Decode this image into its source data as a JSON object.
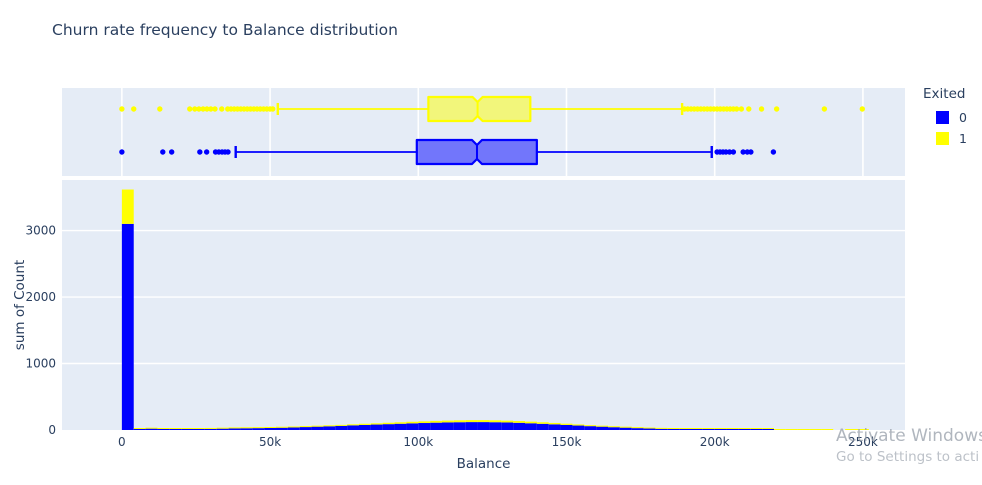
{
  "title": "Churn rate frequency to Balance distribution",
  "watermark": {
    "line1": "Activate Windows",
    "line2": "Go to Settings to acti"
  },
  "theme": {
    "paper_bg": "#ffffff",
    "plot_bg": "#e5ecf6",
    "grid_color": "#ffffff",
    "font_color": "#2a3f5f",
    "color_exited_0": "#0000ff",
    "color_exited_1": "#ffff00"
  },
  "chart_data": {
    "type": "histogram+marginal-box",
    "title": "Churn rate frequency to Balance distribution",
    "xlabel": "Balance",
    "ylabel": "sum of Count",
    "legend": {
      "title": "Exited",
      "items": [
        {
          "label": "0",
          "color": "#0000ff"
        },
        {
          "label": "1",
          "color": "#ffff00"
        }
      ]
    },
    "x_axis": {
      "unit": "thousands",
      "range_k": [
        -20.2,
        264.2
      ],
      "ticks": [
        {
          "value_k": 0,
          "label": "0"
        },
        {
          "value_k": 50,
          "label": "50k"
        },
        {
          "value_k": 100,
          "label": "100k"
        },
        {
          "value_k": 150,
          "label": "150k"
        },
        {
          "value_k": 200,
          "label": "200k"
        },
        {
          "value_k": 250,
          "label": "250k"
        }
      ]
    },
    "y_axis": {
      "range": [
        0,
        3760
      ],
      "ticks": [
        {
          "value": 0,
          "label": "0"
        },
        {
          "value": 1000,
          "label": "1000"
        },
        {
          "value": 2000,
          "label": "2000"
        },
        {
          "value": 3000,
          "label": "3000"
        }
      ]
    },
    "histogram": {
      "stacked": true,
      "bin_width_k": 4,
      "bin_starts_k": [
        0,
        4,
        8,
        12,
        16,
        20,
        24,
        28,
        32,
        36,
        40,
        44,
        48,
        52,
        56,
        60,
        64,
        68,
        72,
        76,
        80,
        84,
        88,
        92,
        96,
        100,
        104,
        108,
        112,
        116,
        120,
        124,
        128,
        132,
        136,
        140,
        144,
        148,
        152,
        156,
        160,
        164,
        168,
        172,
        176,
        180,
        184,
        188,
        192,
        196,
        200,
        204,
        208,
        212,
        216,
        220,
        224,
        228,
        232,
        236,
        240,
        244,
        248
      ],
      "series": [
        {
          "name": "Exited 0",
          "color": "#0000ff",
          "counts": [
            3100,
            2,
            20,
            6,
            8,
            10,
            12,
            16,
            20,
            24,
            26,
            28,
            30,
            34,
            38,
            44,
            50,
            56,
            62,
            70,
            76,
            82,
            88,
            94,
            100,
            105,
            110,
            114,
            117,
            119,
            119,
            117,
            113,
            108,
            101,
            93,
            85,
            76,
            67,
            58,
            50,
            42,
            35,
            28,
            22,
            17,
            13,
            10,
            7,
            5,
            4,
            2,
            2,
            1,
            1,
            0,
            0,
            0,
            0,
            0,
            0,
            0,
            0
          ]
        },
        {
          "name": "Exited 1",
          "color": "#ffff00",
          "counts": [
            517,
            1,
            3,
            2,
            3,
            3,
            4,
            5,
            5,
            6,
            7,
            8,
            8,
            9,
            10,
            11,
            12,
            13,
            14,
            16,
            18,
            19,
            21,
            22,
            24,
            25,
            27,
            28,
            29,
            30,
            30,
            29,
            28,
            27,
            25,
            23,
            21,
            19,
            17,
            14,
            12,
            10,
            9,
            7,
            6,
            5,
            4,
            3,
            3,
            2,
            2,
            1,
            1,
            1,
            1,
            1,
            1,
            1,
            1,
            1,
            0,
            1,
            1
          ]
        }
      ]
    },
    "box_plots": [
      {
        "exited": "1",
        "color": "#ffff00",
        "row": "top",
        "whisker_low_k": 52.6,
        "q1_k": 103.4,
        "median_k": 120.0,
        "q3_k": 137.8,
        "whisker_high_k": 189.0,
        "outliers_k": [
          0,
          4,
          12.8,
          22.9,
          24.6,
          26,
          27.4,
          28.7,
          30,
          31.4,
          33.7,
          35.7,
          36.8,
          37.9,
          39,
          40.1,
          41.2,
          42.3,
          43.4,
          44.5,
          45.6,
          46.7,
          47.8,
          48.9,
          50,
          50.9,
          189.8,
          190.9,
          192,
          193.1,
          194.2,
          195.3,
          196.4,
          197.5,
          198.6,
          199.7,
          200.8,
          201.9,
          203,
          204.1,
          205.2,
          206.3,
          207.4,
          209,
          211.5,
          215.8,
          220.9,
          237,
          249.8
        ]
      },
      {
        "exited": "0",
        "color": "#0000ff",
        "row": "bottom",
        "whisker_low_k": 38.4,
        "q1_k": 99.5,
        "median_k": 119.8,
        "q3_k": 140.0,
        "whisker_high_k": 199.0,
        "outliers_k": [
          0,
          13.8,
          16.8,
          26.3,
          28.6,
          31.6,
          32.7,
          33.8,
          34.8,
          35.8,
          200.8,
          201.8,
          202.8,
          203.8,
          205,
          206.3,
          209.6,
          211,
          212.2,
          219.8
        ]
      }
    ]
  }
}
